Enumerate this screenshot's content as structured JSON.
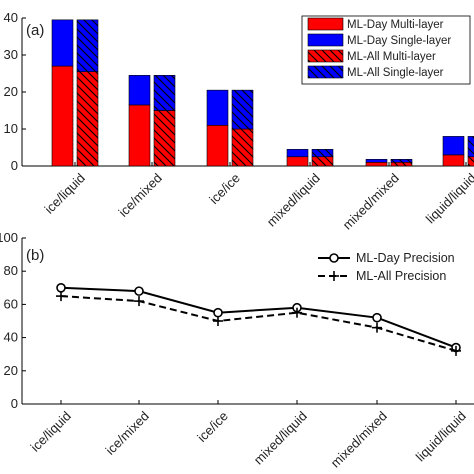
{
  "chart_data": [
    {
      "panel_label": "(a)",
      "type": "bar",
      "grouped_stacked": true,
      "categories": [
        "ice/liquid",
        "ice/mixed",
        "ice/ice",
        "mixed/liquid",
        "mixed/mixed",
        "liquid/liquid"
      ],
      "ylim": [
        0,
        40
      ],
      "yticks": [
        0,
        10,
        20,
        30,
        40
      ],
      "ytick_labels": [
        "0",
        "10",
        "20",
        "30",
        "40"
      ],
      "grid": false,
      "legend_position": "top-right",
      "series": [
        {
          "name": "ML-Day Multi-layer",
          "group": "ML-Day",
          "stack": "bottom",
          "values": [
            27,
            16.5,
            11,
            2.5,
            1,
            3
          ],
          "color": "#ff0000",
          "hatch": false
        },
        {
          "name": "ML-Day Single-layer",
          "group": "ML-Day",
          "stack": "top",
          "values": [
            12.5,
            8,
            9.5,
            2,
            0.8,
            5
          ],
          "color": "#0000ff",
          "hatch": false
        },
        {
          "name": "ML-All Multi-layer",
          "group": "ML-All",
          "stack": "bottom",
          "values": [
            25.5,
            15,
            10,
            2.5,
            1,
            2.5
          ],
          "color": "#ff0000",
          "hatch": true
        },
        {
          "name": "ML-All Single-layer",
          "group": "ML-All",
          "stack": "top",
          "values": [
            14,
            9.5,
            10.5,
            2,
            0.8,
            5.5
          ],
          "color": "#0000ff",
          "hatch": true
        }
      ]
    },
    {
      "panel_label": "(b)",
      "type": "line",
      "categories": [
        "ice/liquid",
        "ice/mixed",
        "ice/ice",
        "mixed/liquid",
        "mixed/mixed",
        "liquid/liquid"
      ],
      "ylim": [
        0,
        100
      ],
      "yticks": [
        0,
        20,
        40,
        60,
        80,
        100
      ],
      "ytick_labels": [
        "0",
        "20",
        "40",
        "60",
        "80",
        "100"
      ],
      "grid": false,
      "legend_position": "top-right",
      "series": [
        {
          "name": "ML-Day Precision",
          "values": [
            70,
            68,
            55,
            58,
            52,
            34
          ],
          "line_style": "solid",
          "marker": "circle",
          "color": "#000000"
        },
        {
          "name": "ML-All Precision",
          "values": [
            65,
            62,
            50,
            55,
            46,
            32
          ],
          "line_style": "dashed",
          "marker": "plus",
          "color": "#000000"
        }
      ]
    }
  ]
}
